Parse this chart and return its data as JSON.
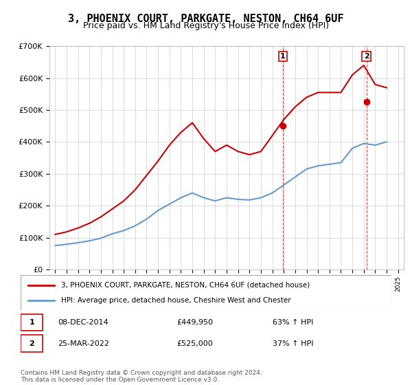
{
  "title": "3, PHOENIX COURT, PARKGATE, NESTON, CH64 6UF",
  "subtitle": "Price paid vs. HM Land Registry's House Price Index (HPI)",
  "legend_line1": "3, PHOENIX COURT, PARKGATE, NESTON, CH64 6UF (detached house)",
  "legend_line2": "HPI: Average price, detached house, Cheshire West and Chester",
  "footnote": "Contains HM Land Registry data © Crown copyright and database right 2024.\nThis data is licensed under the Open Government Licence v3.0.",
  "transaction1_label": "1",
  "transaction1_date": "08-DEC-2014",
  "transaction1_price": "£449,950",
  "transaction1_hpi": "63% ↑ HPI",
  "transaction2_label": "2",
  "transaction2_date": "25-MAR-2022",
  "transaction2_price": "£525,000",
  "transaction2_hpi": "37% ↑ HPI",
  "house_color": "#cc0000",
  "hpi_color": "#6699cc",
  "background_color": "#ffffff",
  "grid_color": "#cccccc",
  "ylim": [
    0,
    700000
  ],
  "yticks": [
    0,
    100000,
    200000,
    300000,
    400000,
    500000,
    600000,
    700000
  ],
  "ytick_labels": [
    "£0",
    "£100K",
    "£200K",
    "£300K",
    "£400K",
    "£500K",
    "£600K",
    "£700K"
  ],
  "hpi_years": [
    1995,
    1996,
    1997,
    1998,
    1999,
    2000,
    2001,
    2002,
    2003,
    2004,
    2005,
    2006,
    2007,
    2008,
    2009,
    2010,
    2011,
    2012,
    2013,
    2014,
    2015,
    2016,
    2017,
    2018,
    2019,
    2020,
    2021,
    2022,
    2023,
    2024
  ],
  "hpi_values": [
    75000,
    79000,
    84000,
    90000,
    98000,
    112000,
    122000,
    137000,
    158000,
    185000,
    205000,
    225000,
    240000,
    225000,
    215000,
    225000,
    220000,
    218000,
    225000,
    240000,
    265000,
    290000,
    315000,
    325000,
    330000,
    335000,
    380000,
    395000,
    390000,
    400000
  ],
  "house_years": [
    1995,
    1996,
    1997,
    1998,
    1999,
    2000,
    2001,
    2002,
    2003,
    2004,
    2005,
    2006,
    2007,
    2008,
    2009,
    2010,
    2011,
    2012,
    2013,
    2014,
    2015,
    2016,
    2017,
    2018,
    2019,
    2020,
    2021,
    2022,
    2023,
    2024
  ],
  "house_values": [
    110000,
    118000,
    130000,
    145000,
    165000,
    190000,
    215000,
    250000,
    295000,
    340000,
    390000,
    430000,
    460000,
    410000,
    370000,
    390000,
    370000,
    360000,
    370000,
    420000,
    470000,
    510000,
    540000,
    555000,
    555000,
    555000,
    610000,
    640000,
    580000,
    570000
  ],
  "sale1_x": 2014.92,
  "sale1_y": 449950,
  "sale2_x": 2022.23,
  "sale2_y": 525000,
  "xlim_left": 1994.5,
  "xlim_right": 2025.5
}
